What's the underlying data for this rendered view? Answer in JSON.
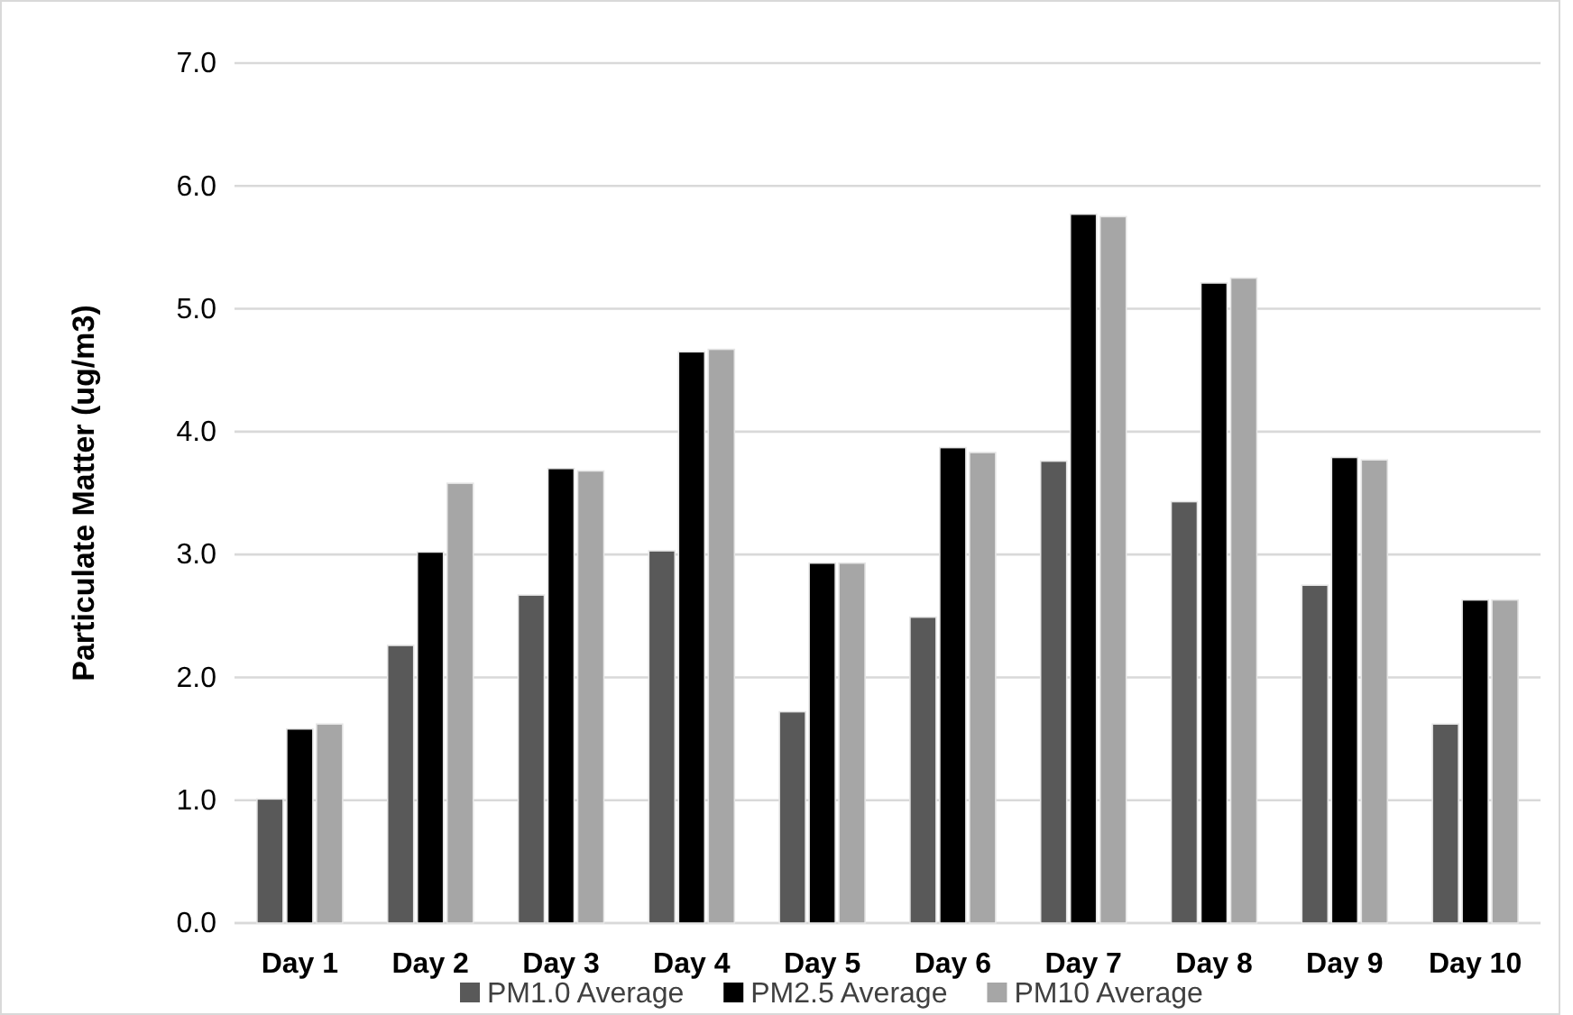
{
  "chart_data": {
    "type": "bar",
    "ylabel": "Particulate Matter (ug/m3)",
    "categories": [
      "Day 1",
      "Day 2",
      "Day 3",
      "Day 4",
      "Day 5",
      "Day 6",
      "Day 7",
      "Day 8",
      "Day 9",
      "Day 10"
    ],
    "series": [
      {
        "name": "PM1.0 Average",
        "color": "#595959",
        "values": [
          1.01,
          2.26,
          2.67,
          3.03,
          1.72,
          2.49,
          3.76,
          3.43,
          2.75,
          1.62
        ]
      },
      {
        "name": "PM2.5 Average",
        "color": "#000000",
        "values": [
          1.58,
          3.02,
          3.7,
          4.65,
          2.93,
          3.87,
          5.77,
          5.21,
          3.79,
          2.63
        ]
      },
      {
        "name": "PM10 Average",
        "color": "#a6a6a6",
        "values": [
          1.62,
          3.58,
          3.68,
          4.67,
          2.93,
          3.83,
          5.75,
          5.25,
          3.77,
          2.63
        ]
      }
    ],
    "ylim": [
      0,
      7
    ],
    "yticks": [
      {
        "value": 0,
        "label": "0.0"
      },
      {
        "value": 1,
        "label": "1.0"
      },
      {
        "value": 2,
        "label": "2.0"
      },
      {
        "value": 3,
        "label": "3.0"
      },
      {
        "value": 4,
        "label": "4.0"
      },
      {
        "value": 5,
        "label": "5.0"
      },
      {
        "value": 6,
        "label": "6.0"
      },
      {
        "value": 7,
        "label": "7.0"
      }
    ],
    "grid": "y",
    "legend": "bottom"
  }
}
